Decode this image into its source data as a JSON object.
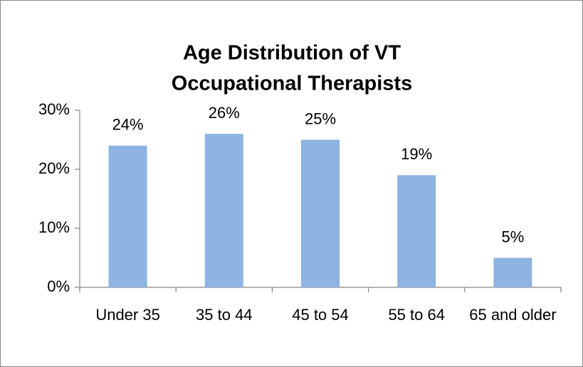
{
  "chart_data": {
    "type": "bar",
    "title": [
      "Age Distribution of VT",
      "Occupational Therapists"
    ],
    "categories": [
      "Under 35",
      "35 to 44",
      "45 to 54",
      "55 to 64",
      "65 and older"
    ],
    "values": [
      24,
      26,
      25,
      19,
      5
    ],
    "value_labels": [
      "24%",
      "26%",
      "25%",
      "19%",
      "5%"
    ],
    "color": "#8db4e2",
    "ylim": [
      0,
      30
    ],
    "yticks": [
      {
        "value": 0,
        "label": "0%"
      },
      {
        "value": 10,
        "label": "10%"
      },
      {
        "value": 20,
        "label": "20%"
      },
      {
        "value": 30,
        "label": "30%"
      }
    ],
    "grid": false
  }
}
